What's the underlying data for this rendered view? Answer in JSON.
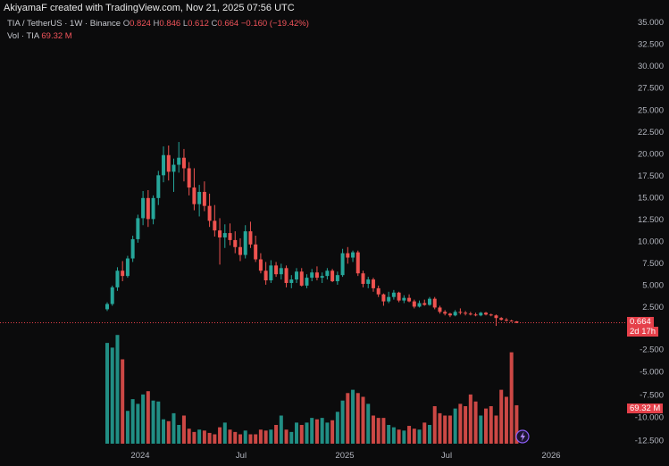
{
  "header": {
    "credit": "AkiyamaF created with TradingView.com, Nov 21, 2025 07:56 UTC",
    "symbol": "TIA / TetherUS · 1W · Binance",
    "o_label": "O",
    "o_value": "0.824",
    "h_label": "H",
    "h_value": "0.846",
    "l_label": "L",
    "l_value": "0.612",
    "c_label": "C",
    "c_value": "0.664",
    "change": "−0.160 (−19.42%)",
    "vol_label": "Vol · TIA",
    "vol_value": "69.32 M"
  },
  "badges": {
    "price": "0.664",
    "countdown": "2d 17h",
    "volume": "69.32 M"
  },
  "colors": {
    "up": "#26a69a",
    "down": "#ef5350",
    "background": "#0b0b0c",
    "last_price": "#e5404a"
  },
  "icons": {
    "bottom_marker": "lightning-icon"
  },
  "chart_data": [
    {
      "type": "candlestick",
      "title": "TIA / TetherUS",
      "timeframe": "1W",
      "yaxis_ticks": [
        "35.000",
        "32.500",
        "30.000",
        "27.500",
        "25.000",
        "22.500",
        "20.000",
        "17.500",
        "15.000",
        "12.500",
        "10.000",
        "7.500",
        "5.000",
        "2.500"
      ],
      "ylim": [
        0,
        35
      ],
      "xaxis_ticks": [
        "2024",
        "Jul",
        "2025",
        "Jul",
        "2026"
      ],
      "last_price": 0.664,
      "candles": [
        [
          2.2,
          3.0,
          2.0,
          2.8
        ],
        [
          2.8,
          4.9,
          2.6,
          4.7
        ],
        [
          4.7,
          7.0,
          4.3,
          6.6
        ],
        [
          6.6,
          7.7,
          5.4,
          6.0
        ],
        [
          6.0,
          8.3,
          5.8,
          8.0
        ],
        [
          8.0,
          10.6,
          7.6,
          10.2
        ],
        [
          10.2,
          13.0,
          9.8,
          12.6
        ],
        [
          12.6,
          15.7,
          11.8,
          14.9
        ],
        [
          14.9,
          15.8,
          11.6,
          12.5
        ],
        [
          12.5,
          15.2,
          11.9,
          14.9
        ],
        [
          14.9,
          18.0,
          14.1,
          17.5
        ],
        [
          17.5,
          20.8,
          16.7,
          19.8
        ],
        [
          19.8,
          20.9,
          16.9,
          17.9
        ],
        [
          17.9,
          19.4,
          15.6,
          18.7
        ],
        [
          18.7,
          21.3,
          17.8,
          19.5
        ],
        [
          19.5,
          20.5,
          16.8,
          18.3
        ],
        [
          18.3,
          19.0,
          15.2,
          16.1
        ],
        [
          16.1,
          18.3,
          13.5,
          14.2
        ],
        [
          14.2,
          16.4,
          12.8,
          15.6
        ],
        [
          15.6,
          16.8,
          13.4,
          14.0
        ],
        [
          14.0,
          15.4,
          11.6,
          12.3
        ],
        [
          12.3,
          14.1,
          10.5,
          11.2
        ],
        [
          11.2,
          12.6,
          7.3,
          10.4
        ],
        [
          10.4,
          11.9,
          9.2,
          10.9
        ],
        [
          10.9,
          12.0,
          9.5,
          10.1
        ],
        [
          10.1,
          11.1,
          8.6,
          9.3
        ],
        [
          9.3,
          10.3,
          7.7,
          8.4
        ],
        [
          8.4,
          11.8,
          8.0,
          11.1
        ],
        [
          11.1,
          12.2,
          9.2,
          9.6
        ],
        [
          9.6,
          10.6,
          7.6,
          7.9
        ],
        [
          7.9,
          8.6,
          6.3,
          6.6
        ],
        [
          6.6,
          7.6,
          5.0,
          5.5
        ],
        [
          5.5,
          7.8,
          5.2,
          7.2
        ],
        [
          7.2,
          7.6,
          5.9,
          6.2
        ],
        [
          6.2,
          7.4,
          5.6,
          6.9
        ],
        [
          6.9,
          7.2,
          4.7,
          5.2
        ],
        [
          5.2,
          6.1,
          4.6,
          5.6
        ],
        [
          5.6,
          6.9,
          5.2,
          6.5
        ],
        [
          6.5,
          6.9,
          4.8,
          4.9
        ],
        [
          4.9,
          6.2,
          4.6,
          5.8
        ],
        [
          5.8,
          6.8,
          5.4,
          6.4
        ],
        [
          6.4,
          7.1,
          5.5,
          5.8
        ],
        [
          5.8,
          6.4,
          5.2,
          6.0
        ],
        [
          6.0,
          6.9,
          5.6,
          6.6
        ],
        [
          6.6,
          6.8,
          5.3,
          5.4
        ],
        [
          5.4,
          6.5,
          5.0,
          6.1
        ],
        [
          6.1,
          9.1,
          5.9,
          8.6
        ],
        [
          8.6,
          9.3,
          7.4,
          8.1
        ],
        [
          8.1,
          8.9,
          7.6,
          8.7
        ],
        [
          8.7,
          8.9,
          6.0,
          6.3
        ],
        [
          6.3,
          6.6,
          4.7,
          5.1
        ],
        [
          5.1,
          5.9,
          4.6,
          5.6
        ],
        [
          5.6,
          5.8,
          4.2,
          4.6
        ],
        [
          4.6,
          4.9,
          3.6,
          3.9
        ],
        [
          3.9,
          4.0,
          2.6,
          3.1
        ],
        [
          3.1,
          4.2,
          2.9,
          3.6
        ],
        [
          3.6,
          4.4,
          3.3,
          4.1
        ],
        [
          4.1,
          4.2,
          3.0,
          3.2
        ],
        [
          3.2,
          3.8,
          2.9,
          3.5
        ],
        [
          3.5,
          3.9,
          3.0,
          3.1
        ],
        [
          3.1,
          3.3,
          2.3,
          2.5
        ],
        [
          2.5,
          3.2,
          2.4,
          2.9
        ],
        [
          2.9,
          3.3,
          2.6,
          2.7
        ],
        [
          2.7,
          3.6,
          2.6,
          3.4
        ],
        [
          3.4,
          3.6,
          2.2,
          2.4
        ],
        [
          2.4,
          2.6,
          1.7,
          1.9
        ],
        [
          1.9,
          2.1,
          1.5,
          1.7
        ],
        [
          1.7,
          1.8,
          1.3,
          1.5
        ],
        [
          1.5,
          2.1,
          1.4,
          1.9
        ],
        [
          1.9,
          2.3,
          1.6,
          1.8
        ],
        [
          1.8,
          2.0,
          1.5,
          1.7
        ],
        [
          1.7,
          1.9,
          1.5,
          1.6
        ],
        [
          1.6,
          1.8,
          1.4,
          1.5
        ],
        [
          1.5,
          1.9,
          1.4,
          1.8
        ],
        [
          1.8,
          1.9,
          1.5,
          1.6
        ],
        [
          1.6,
          1.7,
          1.4,
          1.5
        ],
        [
          1.5,
          1.6,
          0.3,
          1.2
        ],
        [
          1.2,
          1.3,
          0.9,
          1.0
        ],
        [
          1.0,
          1.2,
          0.8,
          0.9
        ],
        [
          0.9,
          1.0,
          0.8,
          0.82
        ],
        [
          0.82,
          0.85,
          0.61,
          0.664
        ]
      ]
    },
    {
      "type": "bar",
      "title": "Vol · TIA",
      "yaxis_ticks": [
        "-2.500",
        "-5.000",
        "-7.500",
        "-10.000",
        "-12.500"
      ],
      "volumes": [
        21.5,
        20.5,
        23.2,
        18.0,
        7.0,
        9.5,
        8.5,
        10.5,
        11.2,
        9.2,
        9.0,
        5.2,
        4.8,
        6.5,
        4.0,
        6.0,
        3.2,
        2.5,
        3.0,
        2.8,
        2.3,
        2.0,
        3.5,
        4.5,
        3.0,
        2.5,
        2.0,
        2.8,
        2.0,
        2.0,
        3.0,
        2.8,
        3.0,
        4.0,
        6.0,
        3.0,
        2.5,
        4.5,
        4.0,
        4.5,
        5.5,
        5.2,
        5.5,
        4.5,
        5.0,
        6.8,
        9.2,
        10.8,
        11.5,
        10.8,
        10.0,
        8.5,
        6.0,
        5.5,
        5.5,
        4.0,
        3.5,
        3.0,
        2.8,
        3.8,
        3.2,
        3.0,
        4.5,
        4.0,
        8.0,
        6.5,
        6.0,
        6.0,
        7.5,
        8.5,
        8.0,
        10.5,
        9.0,
        6.0,
        7.5,
        8.0,
        6.0,
        11.5,
        10.0,
        19.5,
        8.2
      ]
    }
  ]
}
